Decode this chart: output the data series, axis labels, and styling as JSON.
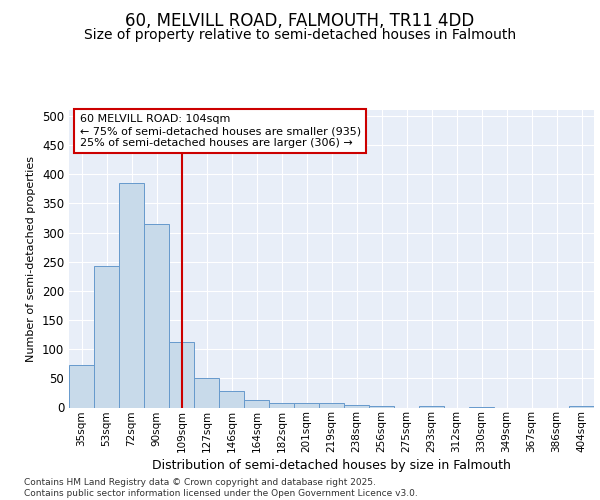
{
  "title1": "60, MELVILL ROAD, FALMOUTH, TR11 4DD",
  "title2": "Size of property relative to semi-detached houses in Falmouth",
  "xlabel": "Distribution of semi-detached houses by size in Falmouth",
  "ylabel": "Number of semi-detached properties",
  "categories": [
    "35sqm",
    "53sqm",
    "72sqm",
    "90sqm",
    "109sqm",
    "127sqm",
    "146sqm",
    "164sqm",
    "182sqm",
    "201sqm",
    "219sqm",
    "238sqm",
    "256sqm",
    "275sqm",
    "293sqm",
    "312sqm",
    "330sqm",
    "349sqm",
    "367sqm",
    "386sqm",
    "404sqm"
  ],
  "values": [
    73,
    242,
    385,
    315,
    113,
    50,
    29,
    13,
    7,
    7,
    8,
    5,
    2,
    0,
    2,
    0,
    1,
    0,
    0,
    0,
    3
  ],
  "bar_color": "#c8daea",
  "bar_edge_color": "#6699cc",
  "vline_x": 4.0,
  "vline_color": "#cc0000",
  "annotation_text": "60 MELVILL ROAD: 104sqm\n← 75% of semi-detached houses are smaller (935)\n25% of semi-detached houses are larger (306) →",
  "annotation_box_color": "#ffffff",
  "annotation_box_edge": "#cc0000",
  "footer": "Contains HM Land Registry data © Crown copyright and database right 2025.\nContains public sector information licensed under the Open Government Licence v3.0.",
  "ylim": [
    0,
    510
  ],
  "plot_background": "#e8eef8",
  "title1_fontsize": 12,
  "title2_fontsize": 10,
  "yticks": [
    0,
    50,
    100,
    150,
    200,
    250,
    300,
    350,
    400,
    450,
    500
  ]
}
